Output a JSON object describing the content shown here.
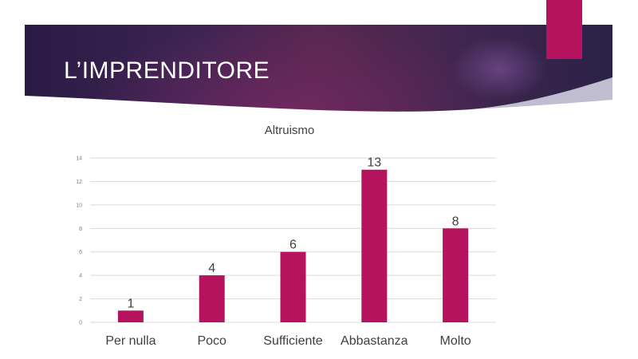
{
  "slide": {
    "title": "L’IMPRENDITORE"
  },
  "colors": {
    "accent": "#b5135e",
    "bar": "#b5135e",
    "banner_dark": "#2a1b45"
  },
  "chart_data": {
    "type": "bar",
    "title": "Altruismo",
    "categories": [
      "Per nulla",
      "Poco",
      "Sufficiente",
      "Abbastanza",
      "Molto"
    ],
    "values": [
      1,
      4,
      6,
      13,
      8
    ],
    "ylim": [
      0,
      14
    ],
    "yticks": [
      0,
      2,
      4,
      6,
      8,
      10,
      12,
      14
    ],
    "grid": true,
    "legend": "none",
    "data_labels": true
  }
}
